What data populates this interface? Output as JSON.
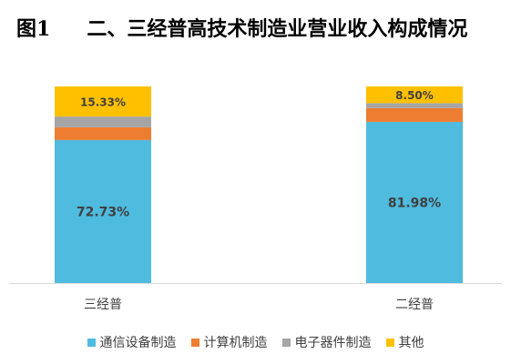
{
  "chart_data": {
    "type": "bar",
    "stacked": true,
    "title_prefix": "图1",
    "title": "二、三经普高技术制造业营业收入构成情况",
    "categories": [
      "三经普",
      "二经普"
    ],
    "series": [
      {
        "name": "通信设备制造",
        "color": "#4EBBDF",
        "values": [
          72.73,
          81.98
        ],
        "labels": [
          "72.73%",
          "81.98%"
        ]
      },
      {
        "name": "计算机制造",
        "color": "#ED7D31",
        "values": [
          6.5,
          7.0
        ],
        "labels": [
          "",
          ""
        ]
      },
      {
        "name": "电子器件制造",
        "color": "#A5A5A5",
        "values": [
          5.44,
          2.52
        ],
        "labels": [
          "",
          ""
        ]
      },
      {
        "name": "其他",
        "color": "#FFC000",
        "values": [
          15.33,
          8.5
        ],
        "labels": [
          "15.33%",
          "8.50%"
        ]
      }
    ],
    "ylim": [
      0,
      100
    ],
    "legend_position": "bottom",
    "grid": false
  }
}
